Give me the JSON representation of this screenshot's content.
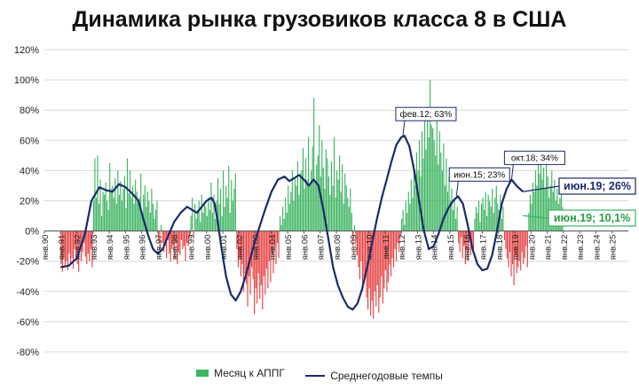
{
  "colors": {
    "bars_positive": "#3cb460",
    "bars_negative": "#e84040",
    "line": "#1a2a6c",
    "grid": "#d9d9d9"
  },
  "chart_data": {
    "type": "bar",
    "title": "Динамика рынка грузовиков класса 8 в США",
    "xlabel": "",
    "ylabel": "",
    "ylim": [
      -80,
      120
    ],
    "yticks": [
      "120%",
      "100%",
      "80%",
      "60%",
      "40%",
      "20%",
      "0%",
      "-20%",
      "-40%",
      "-60%",
      "-80%"
    ],
    "ytick_values": [
      120,
      100,
      80,
      60,
      40,
      20,
      0,
      -20,
      -40,
      -60,
      -80
    ],
    "xrange": [
      1990,
      2026
    ],
    "xticks": [
      "янв.90",
      "янв.91",
      "янв.92",
      "янв.93",
      "янв.94",
      "янв.95",
      "янв.96",
      "янв.97",
      "янв.98",
      "янв.99",
      "янв.00",
      "янв.01",
      "янв.02",
      "янв.03",
      "янв.04",
      "янв.05",
      "янв.06",
      "янв.07",
      "янв.08",
      "янв.09",
      "янв.10",
      "янв.11",
      "янв.12",
      "янв.13",
      "янв.14",
      "янв.15",
      "янв.16",
      "янв.17",
      "янв.18",
      "янв.19",
      "янв.20",
      "янв.21",
      "янв.22",
      "янв.23",
      "янв.24",
      "янв.25"
    ],
    "xtick_values": [
      1990,
      1991,
      1992,
      1993,
      1994,
      1995,
      1996,
      1997,
      1998,
      1999,
      2000,
      2001,
      2002,
      2003,
      2004,
      2005,
      2006,
      2007,
      2008,
      2009,
      2010,
      2011,
      2012,
      2013,
      2014,
      2015,
      2016,
      2017,
      2018,
      2019,
      2020,
      2021,
      2022,
      2023,
      2024,
      2025
    ],
    "series": [
      {
        "name": "Месяц к АППГ",
        "kind": "bar",
        "x_start": 1991.0,
        "x_step": 0.0833333,
        "values": [
          -22,
          -27,
          -18,
          -24,
          -20,
          -26,
          -15,
          -22,
          -18,
          -25,
          -12,
          -19,
          -22,
          -27,
          -10,
          -20,
          -14,
          -8,
          -17,
          -22,
          -15,
          -20,
          -12,
          -24,
          20,
          48,
          22,
          50,
          18,
          34,
          10,
          26,
          24,
          32,
          20,
          14,
          45,
          28,
          30,
          22,
          35,
          18,
          40,
          24,
          33,
          20,
          28,
          36,
          15,
          48,
          25,
          40,
          22,
          30,
          18,
          34,
          26,
          20,
          22,
          38,
          10,
          24,
          30,
          16,
          26,
          20,
          12,
          28,
          18,
          8,
          14,
          20,
          -6,
          -12,
          4,
          -8,
          -14,
          -10,
          -18,
          -6,
          -15,
          -20,
          -12,
          -10,
          -18,
          -8,
          -22,
          -14,
          -16,
          -6,
          -12,
          -10,
          -20,
          -8,
          -10,
          -4,
          10,
          22,
          -4,
          18,
          8,
          14,
          20,
          6,
          24,
          12,
          18,
          16,
          10,
          22,
          14,
          32,
          12,
          24,
          8,
          20,
          35,
          18,
          28,
          10,
          40,
          16,
          30,
          22,
          43,
          12,
          34,
          20,
          28,
          38,
          -12,
          -24,
          -18,
          -30,
          -22,
          -40,
          -28,
          -35,
          -50,
          -30,
          -42,
          -24,
          -32,
          -55,
          -38,
          -48,
          -28,
          -45,
          -36,
          -52,
          -30,
          -42,
          -25,
          -38,
          -20,
          -34,
          -15,
          -28,
          -10,
          -22,
          -8,
          -18,
          10,
          4,
          16,
          8,
          22,
          12,
          30,
          18,
          26,
          40,
          20,
          35,
          30,
          46,
          24,
          38,
          40,
          55,
          28,
          48,
          34,
          62,
          30,
          40,
          56,
          88,
          32,
          44,
          50,
          70,
          36,
          60,
          42,
          28,
          54,
          48,
          36,
          24,
          46,
          30,
          62,
          22,
          40,
          34,
          50,
          26,
          44,
          18,
          38,
          30,
          22,
          16,
          28,
          12,
          -10,
          4,
          -6,
          -16,
          -24,
          -32,
          -20,
          -40,
          -34,
          -30,
          -44,
          -52,
          -38,
          -56,
          -46,
          -58,
          -40,
          -50,
          -36,
          -54,
          -44,
          -30,
          -48,
          -38,
          -26,
          -40,
          -34,
          -22,
          -30,
          -18,
          -24,
          -12,
          -20,
          -8,
          -14,
          -4,
          8,
          14,
          4,
          20,
          12,
          26,
          18,
          34,
          22,
          44,
          30,
          52,
          40,
          60,
          36,
          66,
          48,
          74,
          54,
          80,
          62,
          100,
          70,
          68,
          60,
          50,
          76,
          44,
          66,
          52,
          40,
          58,
          30,
          48,
          26,
          36,
          20,
          28,
          14,
          22,
          8,
          16,
          -8,
          -14,
          -4,
          -18,
          -10,
          -22,
          -12,
          -20,
          -6,
          -16,
          -10,
          -14,
          8,
          16,
          12,
          20,
          6,
          18,
          22,
          14,
          26,
          10,
          24,
          20,
          16,
          28,
          12,
          22,
          30,
          18,
          14,
          24,
          8,
          16,
          -6,
          -12,
          -18,
          -24,
          -14,
          -30,
          -22,
          -36,
          -16,
          -28,
          -24,
          -20,
          -26,
          -14,
          -22,
          -18,
          -10,
          -24,
          12,
          24,
          18,
          32,
          26,
          40,
          30,
          46,
          38,
          50,
          34,
          42,
          28,
          44,
          36,
          22,
          30,
          40,
          26,
          34,
          20,
          28,
          18,
          22,
          24,
          16
        ]
      },
      {
        "name": "Среднегодовые темпы",
        "kind": "line",
        "points": [
          [
            1991.0,
            -24
          ],
          [
            1991.5,
            -23
          ],
          [
            1992.0,
            -18
          ],
          [
            1992.5,
            -2
          ],
          [
            1992.9,
            20
          ],
          [
            1993.4,
            29
          ],
          [
            1993.8,
            27
          ],
          [
            1994.2,
            26
          ],
          [
            1994.6,
            31
          ],
          [
            1995.0,
            29
          ],
          [
            1995.4,
            25
          ],
          [
            1995.8,
            20
          ],
          [
            1996.1,
            8
          ],
          [
            1996.4,
            -3
          ],
          [
            1996.7,
            -12
          ],
          [
            1997.0,
            -15
          ],
          [
            1997.3,
            -12
          ],
          [
            1997.6,
            -4
          ],
          [
            1998.0,
            6
          ],
          [
            1998.4,
            12
          ],
          [
            1998.8,
            16
          ],
          [
            1999.1,
            14
          ],
          [
            1999.4,
            12
          ],
          [
            1999.7,
            16
          ],
          [
            2000.0,
            20
          ],
          [
            2000.3,
            22
          ],
          [
            2000.5,
            18
          ],
          [
            2000.7,
            5
          ],
          [
            2000.9,
            -10
          ],
          [
            2001.2,
            -30
          ],
          [
            2001.5,
            -42
          ],
          [
            2001.8,
            -46
          ],
          [
            2002.1,
            -40
          ],
          [
            2002.4,
            -30
          ],
          [
            2002.7,
            -18
          ],
          [
            2003.0,
            -6
          ],
          [
            2003.3,
            4
          ],
          [
            2003.6,
            14
          ],
          [
            2004.0,
            26
          ],
          [
            2004.4,
            34
          ],
          [
            2004.8,
            36
          ],
          [
            2005.1,
            33
          ],
          [
            2005.4,
            35
          ],
          [
            2005.7,
            37
          ],
          [
            2006.0,
            34
          ],
          [
            2006.3,
            30
          ],
          [
            2006.6,
            34
          ],
          [
            2006.9,
            30
          ],
          [
            2007.2,
            14
          ],
          [
            2007.5,
            -5
          ],
          [
            2007.8,
            -24
          ],
          [
            2008.1,
            -36
          ],
          [
            2008.4,
            -44
          ],
          [
            2008.7,
            -50
          ],
          [
            2009.0,
            -52
          ],
          [
            2009.3,
            -48
          ],
          [
            2009.6,
            -38
          ],
          [
            2009.9,
            -24
          ],
          [
            2010.2,
            -8
          ],
          [
            2010.5,
            8
          ],
          [
            2010.8,
            22
          ],
          [
            2011.1,
            34
          ],
          [
            2011.4,
            46
          ],
          [
            2011.7,
            57
          ],
          [
            2012.0,
            62
          ],
          [
            2012.2,
            63
          ],
          [
            2012.5,
            56
          ],
          [
            2012.8,
            40
          ],
          [
            2013.1,
            20
          ],
          [
            2013.4,
            0
          ],
          [
            2013.7,
            -12
          ],
          [
            2014.0,
            -10
          ],
          [
            2014.3,
            -2
          ],
          [
            2014.6,
            8
          ],
          [
            2014.9,
            15
          ],
          [
            2015.2,
            20
          ],
          [
            2015.5,
            23
          ],
          [
            2015.8,
            18
          ],
          [
            2016.1,
            4
          ],
          [
            2016.4,
            -12
          ],
          [
            2016.7,
            -22
          ],
          [
            2017.0,
            -26
          ],
          [
            2017.3,
            -25
          ],
          [
            2017.6,
            -16
          ],
          [
            2017.9,
            0
          ],
          [
            2018.2,
            18
          ],
          [
            2018.5,
            28
          ],
          [
            2018.8,
            34
          ],
          [
            2019.1,
            30
          ],
          [
            2019.4,
            27
          ],
          [
            2019.5,
            26
          ]
        ]
      }
    ],
    "annotations": [
      {
        "text": "фев.12; 63%",
        "x": 2012.1,
        "y": 63,
        "style": "callout"
      },
      {
        "text": "июн.15; 23%",
        "x": 2015.4,
        "y": 23,
        "style": "callout"
      },
      {
        "text": "окт.18; 34%",
        "x": 2018.8,
        "y": 34,
        "style": "callout"
      },
      {
        "text": "июн.19; 26%",
        "x": 2019.5,
        "y": 26,
        "style": "end-label-line"
      },
      {
        "text": "июн.19; 10,1%",
        "x": 2019.5,
        "y": 10.1,
        "style": "end-label-bar"
      }
    ],
    "legend": {
      "placement": "bottom",
      "entries": [
        "Месяц к АППГ",
        "Среднегодовые темпы"
      ]
    },
    "grid": true
  }
}
